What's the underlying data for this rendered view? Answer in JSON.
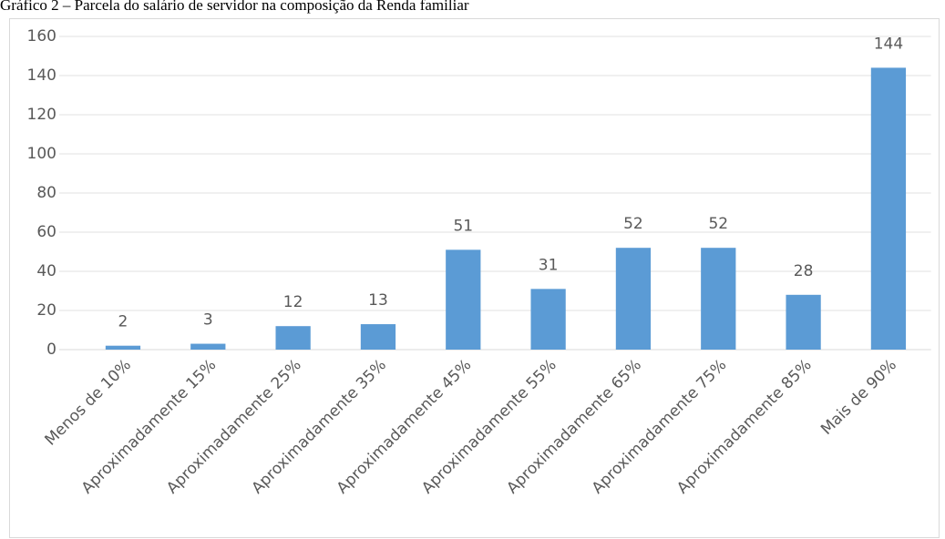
{
  "chart_data": {
    "type": "bar",
    "title": "Gráfico 2 – Parcela do salário de servidor na composição da Renda familiar",
    "categories": [
      "Menos de 10%",
      "Aproximadamente 15%",
      "Aproximadamente 25%",
      "Aproximadamente 35%",
      "Aproximadamente 45%",
      "Aproximadamente 55%",
      "Aproximadamente 65%",
      "Aproximadamente 75%",
      "Aproximadamente 85%",
      "Mais de 90%"
    ],
    "values": [
      2,
      3,
      12,
      13,
      51,
      31,
      52,
      52,
      28,
      144
    ],
    "color": "#5b9bd5",
    "ylim": [
      0,
      160
    ],
    "yticks": [
      0,
      20,
      40,
      60,
      80,
      100,
      120,
      140,
      160
    ],
    "grid": true
  }
}
